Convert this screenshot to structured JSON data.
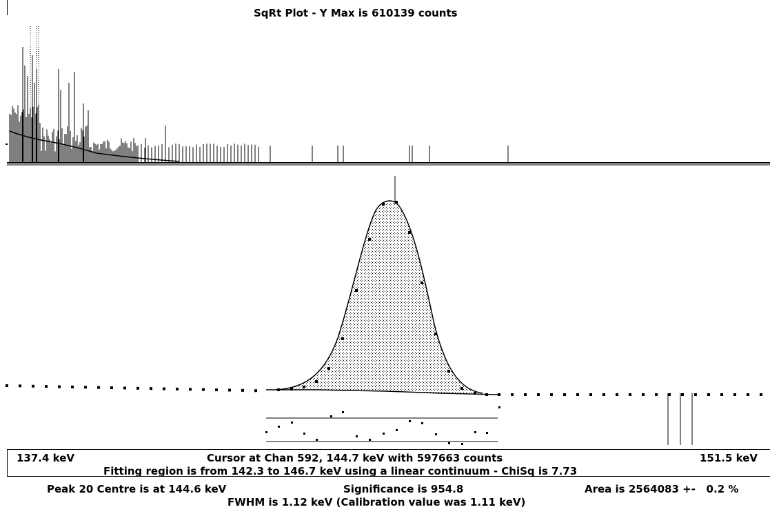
{
  "overview": {
    "title": "SqRt Plot - Y Max is 610139 counts",
    "y_max_counts": 610139
  },
  "status": {
    "left_energy": "137.4 keV",
    "cursor": "Cursor at Chan 592, 144.7 keV with 597663 counts",
    "right_energy": "151.5 keV",
    "fitting_region": "Fitting region is from 142.3 to 146.7 keV using a linear continuum - ChiSq is 7.73",
    "peak_centre": "Peak 20 Centre is at 144.6 keV",
    "significance": "Significance is 954.8",
    "area": "Area is 2564083 +-   0.2 %",
    "fwhm": "FWHM is 1.12 keV  (Calibration value was 1.11 keV)"
  },
  "colors": {
    "background": "#ffffff",
    "ink": "#000000"
  }
}
